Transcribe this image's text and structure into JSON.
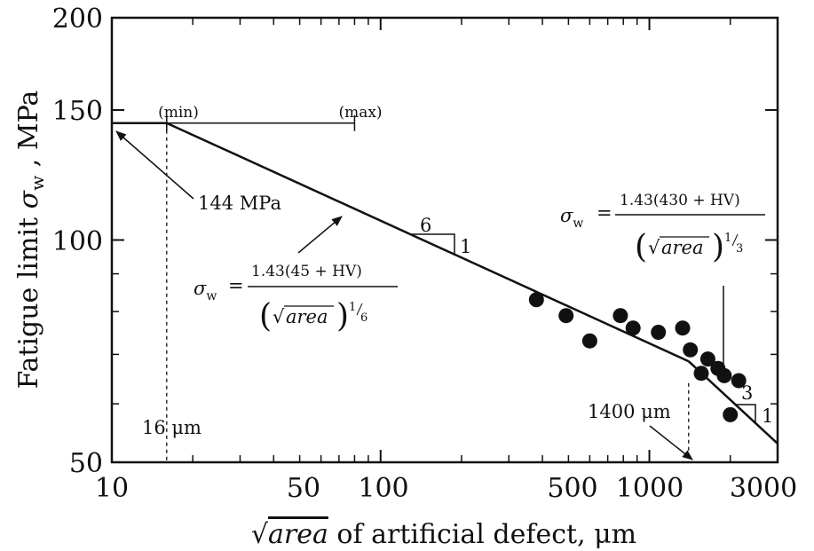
{
  "chart_data": {
    "type": "scatter",
    "xscale": "log",
    "yscale": "log",
    "xlim": [
      10,
      3000
    ],
    "ylim": [
      50,
      200
    ],
    "x_ticks": [
      "10",
      "50",
      "100",
      "500",
      "1000",
      "3000"
    ],
    "y_ticks": [
      "200",
      "150",
      "100",
      "50"
    ],
    "xlabel_prefix": "√",
    "xlabel_area": "area",
    "xlabel_suffix": " of artificial defect, μm",
    "ylabel_prefix": "Fatigue limit ",
    "ylabel_sigma": "σ",
    "ylabel_sub": "w",
    "ylabel_suffix": " , MPa",
    "points": [
      {
        "x": 380,
        "y": 83
      },
      {
        "x": 490,
        "y": 79
      },
      {
        "x": 600,
        "y": 73
      },
      {
        "x": 780,
        "y": 79
      },
      {
        "x": 870,
        "y": 76
      },
      {
        "x": 1080,
        "y": 75
      },
      {
        "x": 1330,
        "y": 76
      },
      {
        "x": 1420,
        "y": 71
      },
      {
        "x": 1560,
        "y": 66
      },
      {
        "x": 1650,
        "y": 69
      },
      {
        "x": 1800,
        "y": 67
      },
      {
        "x": 1900,
        "y": 65.5
      },
      {
        "x": 2000,
        "y": 58
      },
      {
        "x": 2150,
        "y": 64.5
      }
    ],
    "lines": [
      {
        "name": "plateau",
        "x": [
          10,
          16
        ],
        "y": [
          144,
          144
        ]
      },
      {
        "name": "sixth_root",
        "x": [
          16,
          1400
        ],
        "y": [
          144,
          68.5
        ]
      },
      {
        "name": "cube_root",
        "x": [
          1400,
          3000
        ],
        "y": [
          68.5,
          53
        ]
      }
    ],
    "range_bar": {
      "x_start": 16,
      "x_end": 80,
      "y": 144,
      "min_label": "(min)",
      "max_label": "(max)"
    },
    "vlines": [
      {
        "x": 16,
        "label": "16 μm"
      },
      {
        "x": 1400,
        "label": "1400 μm"
      }
    ],
    "annotations": {
      "plateau_value": "144 MPa",
      "slope1_run": "6",
      "slope1_rise": "1",
      "slope2_run": "3",
      "slope2_rise": "1",
      "eq1_lhs": "σ",
      "eq1_lhs_sub": "w",
      "eq1_eq": "=",
      "eq1_num": "1.43(45 + HV)",
      "eq1_den_area": "area",
      "eq1_den_exp": "1",
      "eq1_den_exp2": "6",
      "eq2_lhs": "σ",
      "eq2_lhs_sub": "w",
      "eq2_eq": "=",
      "eq2_num": "1.43(430 + HV)",
      "eq2_den_area": "area",
      "eq2_den_exp": "1",
      "eq2_den_exp2": "3"
    }
  }
}
